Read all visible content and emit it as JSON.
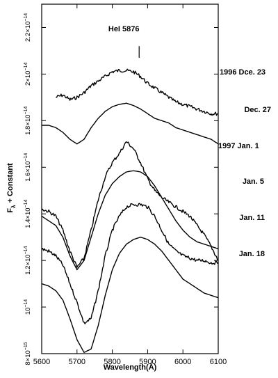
{
  "chart_data": {
    "type": "line",
    "xlabel": "Wavelength(Å)",
    "ylabel": "F_λ + Constant",
    "ylabel_main": "F",
    "ylabel_sub": "λ",
    "ylabel_rest": " + Constant",
    "xlim": [
      5600,
      6100
    ],
    "ylim": [
      8e-15,
      2.3e-14
    ],
    "x_ticks": [
      {
        "value": 5600,
        "label": "5600"
      },
      {
        "value": 5700,
        "label": "5700"
      },
      {
        "value": 5800,
        "label": "5800"
      },
      {
        "value": 5900,
        "label": "5900"
      },
      {
        "value": 6000,
        "label": "6000"
      },
      {
        "value": 6100,
        "label": "6100"
      }
    ],
    "y_ticks": [
      {
        "value": 8e-15,
        "mant": "8×10",
        "exp": "−15"
      },
      {
        "value": 1e-14,
        "mant": "10",
        "exp": "−14"
      },
      {
        "value": 1.2e-14,
        "mant": "1.2×10",
        "exp": "−14"
      },
      {
        "value": 1.4e-14,
        "mant": "1.4×10",
        "exp": "−14"
      },
      {
        "value": 1.6e-14,
        "mant": "1.6×10",
        "exp": "−14"
      },
      {
        "value": 1.8e-14,
        "mant": "1.8×10",
        "exp": "−14"
      },
      {
        "value": 2e-14,
        "mant": "2×10",
        "exp": "−14"
      },
      {
        "value": 2.2e-14,
        "mant": "2.2×10",
        "exp": "−14"
      }
    ],
    "annotation": {
      "text": "HeI 5876",
      "x": 5876,
      "marker_y": [
        2.07e-14,
        2.12e-14
      ]
    },
    "series": [
      {
        "name": "1996 Dce. 23",
        "noise": true,
        "x": [
          5640,
          5660,
          5680,
          5700,
          5720,
          5740,
          5760,
          5780,
          5800,
          5820,
          5840,
          5860,
          5880,
          5900,
          5920,
          5940,
          5960,
          5980,
          6000,
          6020,
          6040,
          6060,
          6080,
          6100
        ],
        "y": [
          1.9e-14,
          1.91e-14,
          1.89e-14,
          1.9e-14,
          1.92e-14,
          1.95e-14,
          1.97e-14,
          1.99e-14,
          2.01e-14,
          2.015e-14,
          2.015e-14,
          2.01e-14,
          1.99e-14,
          1.96e-14,
          1.94e-14,
          1.92e-14,
          1.9e-14,
          1.88e-14,
          1.87e-14,
          1.86e-14,
          1.85e-14,
          1.84e-14,
          1.83e-14,
          1.83e-14
        ]
      },
      {
        "name": "Dec. 27",
        "noise": false,
        "x": [
          5600,
          5620,
          5640,
          5660,
          5680,
          5700,
          5720,
          5740,
          5760,
          5780,
          5800,
          5820,
          5840,
          5860,
          5880,
          5900,
          5920,
          5940,
          5960,
          5980,
          6000,
          6020,
          6040,
          6060,
          6080,
          6100
        ],
        "y": [
          1.78e-14,
          1.78e-14,
          1.77e-14,
          1.75e-14,
          1.72e-14,
          1.7e-14,
          1.72e-14,
          1.77e-14,
          1.81e-14,
          1.84e-14,
          1.86e-14,
          1.87e-14,
          1.875e-14,
          1.865e-14,
          1.85e-14,
          1.83e-14,
          1.81e-14,
          1.8e-14,
          1.79e-14,
          1.77e-14,
          1.76e-14,
          1.75e-14,
          1.74e-14,
          1.73e-14,
          1.72e-14,
          1.7e-14
        ]
      },
      {
        "name": "1997 Jan. 1",
        "noise": true,
        "x": [
          5600,
          5620,
          5640,
          5660,
          5680,
          5700,
          5720,
          5740,
          5760,
          5780,
          5800,
          5820,
          5840,
          5860,
          5880,
          5900,
          5920,
          5940,
          5960,
          5980,
          6000,
          6020,
          6040,
          6060,
          6080,
          6100
        ],
        "y": [
          1.42e-14,
          1.41e-14,
          1.39e-14,
          1.33e-14,
          1.24e-14,
          1.17e-14,
          1.21e-14,
          1.33e-14,
          1.46e-14,
          1.56e-14,
          1.62e-14,
          1.66e-14,
          1.71e-14,
          1.68e-14,
          1.62e-14,
          1.55e-14,
          1.5e-14,
          1.47e-14,
          1.45e-14,
          1.43e-14,
          1.41e-14,
          1.39e-14,
          1.35e-14,
          1.31e-14,
          1.26e-14,
          1.2e-14
        ]
      },
      {
        "name": "Jan. 5",
        "noise": false,
        "x": [
          5600,
          5620,
          5640,
          5660,
          5680,
          5700,
          5720,
          5740,
          5760,
          5780,
          5800,
          5820,
          5840,
          5860,
          5880,
          5900,
          5920,
          5940,
          5960,
          5980,
          6000,
          6020,
          6040,
          6060,
          6080,
          6100
        ],
        "y": [
          1.39e-14,
          1.37e-14,
          1.35e-14,
          1.3e-14,
          1.22e-14,
          1.16e-14,
          1.2e-14,
          1.3e-14,
          1.4e-14,
          1.48e-14,
          1.53e-14,
          1.56e-14,
          1.58e-14,
          1.585e-14,
          1.58e-14,
          1.56e-14,
          1.52e-14,
          1.47e-14,
          1.42e-14,
          1.37e-14,
          1.33e-14,
          1.3e-14,
          1.28e-14,
          1.27e-14,
          1.26e-14,
          1.25e-14
        ]
      },
      {
        "name": "Jan. 11",
        "noise": true,
        "x": [
          5600,
          5620,
          5640,
          5660,
          5680,
          5700,
          5720,
          5740,
          5760,
          5780,
          5800,
          5820,
          5840,
          5860,
          5880,
          5900,
          5920,
          5940,
          5960,
          5980,
          6000,
          6020,
          6040,
          6060,
          6080,
          6100
        ],
        "y": [
          1.25e-14,
          1.24e-14,
          1.22e-14,
          1.18e-14,
          1.1e-14,
          1.02e-14,
          9.3e-15,
          9.5e-15,
          1.07e-14,
          1.22e-14,
          1.33e-14,
          1.39e-14,
          1.43e-14,
          1.44e-14,
          1.44e-14,
          1.43e-14,
          1.39e-14,
          1.33e-14,
          1.27e-14,
          1.24e-14,
          1.22e-14,
          1.21e-14,
          1.2e-14,
          1.2e-14,
          1.19e-14,
          1.19e-14
        ]
      },
      {
        "name": "Jan. 18",
        "noise": false,
        "x": [
          5600,
          5620,
          5640,
          5660,
          5680,
          5700,
          5720,
          5740,
          5760,
          5780,
          5800,
          5820,
          5840,
          5860,
          5880,
          5900,
          5920,
          5940,
          5960,
          5980,
          6000,
          6020,
          6040,
          6060,
          6080,
          6100
        ],
        "y": [
          1.1e-14,
          1.09e-14,
          1.07e-14,
          1.03e-14,
          9.5e-15,
          8.6e-15,
          8.05e-15,
          8.2e-15,
          9.2e-15,
          1.05e-14,
          1.16e-14,
          1.23e-14,
          1.27e-14,
          1.29e-14,
          1.3e-14,
          1.29e-14,
          1.27e-14,
          1.24e-14,
          1.2e-14,
          1.16e-14,
          1.12e-14,
          1.1e-14,
          1.08e-14,
          1.06e-14,
          1.05e-14,
          1.04e-14
        ]
      }
    ],
    "grid": false,
    "legend": "right"
  }
}
